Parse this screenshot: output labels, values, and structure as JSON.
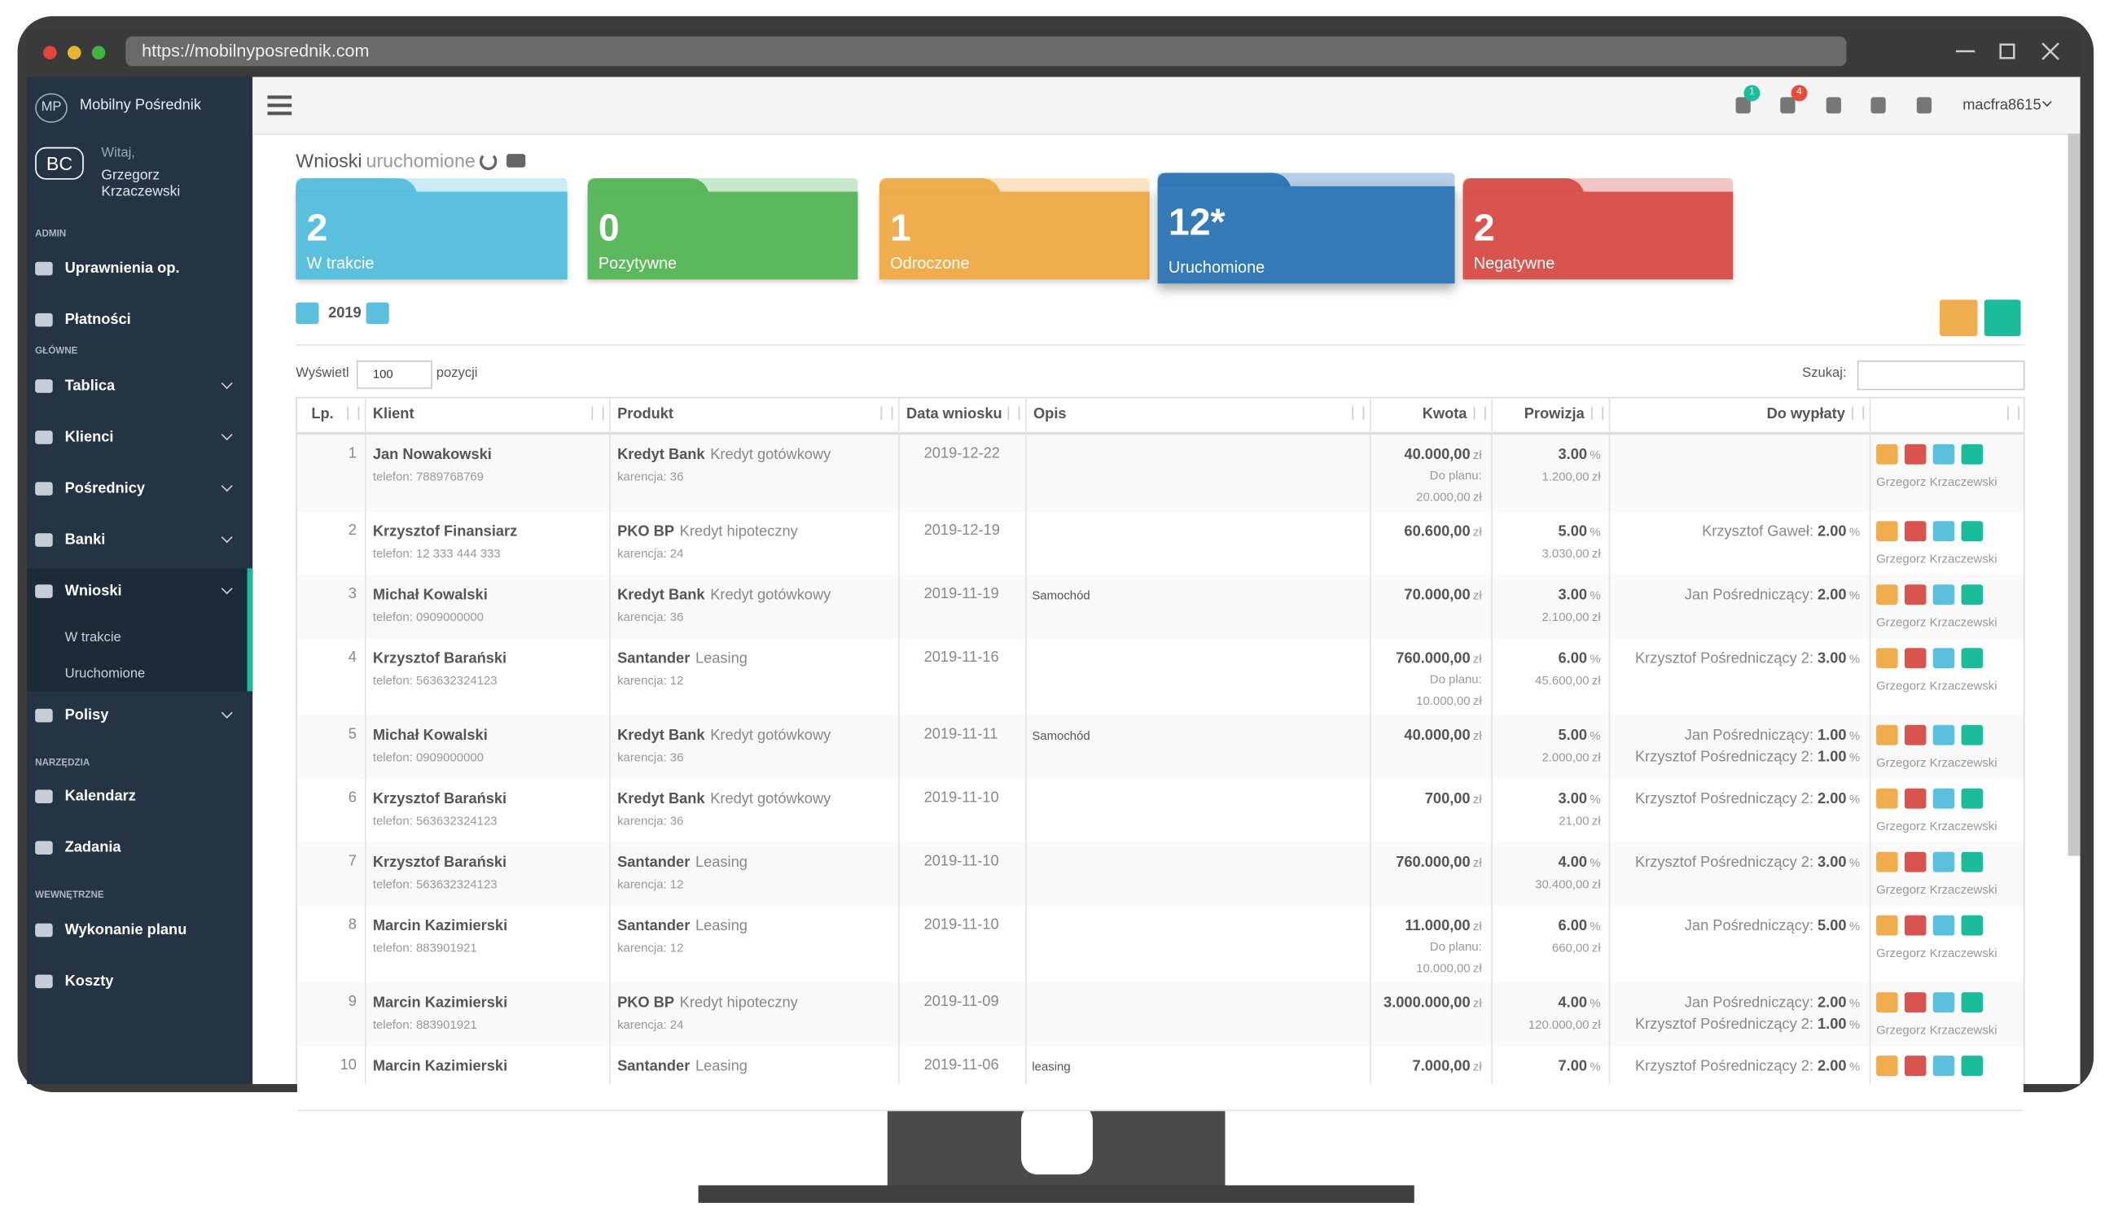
{
  "browser": {
    "url": "https://mobilnyposrednik.com"
  },
  "sidebar": {
    "logo": "MP",
    "brand": "Mobilny Pośrednik",
    "avatar": "BC",
    "greeting": "Witaj,",
    "user": "Grzegorz Krzaczewski",
    "sections": [
      {
        "label": "ADMIN",
        "items": [
          {
            "label": "Uprawnienia op."
          },
          {
            "label": "Płatności"
          }
        ]
      },
      {
        "label": "GŁÓWNE",
        "items": [
          {
            "label": "Tablica"
          },
          {
            "label": "Klienci"
          },
          {
            "label": "Pośrednicy"
          },
          {
            "label": "Banki"
          },
          {
            "label": "Wnioski",
            "children": [
              "W trakcie",
              "Uruchomione"
            ]
          },
          {
            "label": "Polisy"
          }
        ]
      },
      {
        "label": "NARZĘDZIA",
        "items": [
          {
            "label": "Kalendarz"
          },
          {
            "label": "Zadania"
          }
        ]
      },
      {
        "label": "WEWNĘTRZNE",
        "items": [
          {
            "label": "Wykonanie planu"
          },
          {
            "label": "Koszty"
          }
        ]
      }
    ]
  },
  "topbar": {
    "badges": [
      "1",
      "4"
    ],
    "username": "macfra8615"
  },
  "page": {
    "title": "Wnioski",
    "subtitle": "uruchomione",
    "cards": [
      {
        "count": "2",
        "label": "W trakcie"
      },
      {
        "count": "0",
        "label": "Pozytywne"
      },
      {
        "count": "1",
        "label": "Odroczone"
      },
      {
        "count": "12*",
        "label": "Uruchomione"
      },
      {
        "count": "2",
        "label": "Negatywne"
      }
    ],
    "year": "2019",
    "show_label": "Wyświetl",
    "page_size": "100",
    "show_suffix": "pozycji",
    "search_label": "Szukaj:"
  },
  "table": {
    "columns": [
      "Lp.",
      "Klient",
      "Produkt",
      "Data wniosku",
      "Opis",
      "Kwota",
      "Prowizja",
      "Do wypłaty"
    ],
    "currency": "zł",
    "percent": "%",
    "plan_label": "Do planu:",
    "rows": [
      {
        "lp": 1,
        "client": "Jan Nowakowski",
        "phone": "telefon: 7889768769",
        "bank": "Kredyt Bank",
        "product": "Kredyt gotówkowy",
        "grace": "karencja: 36",
        "date": "2019-12-22",
        "amount": "40.000,00",
        "plan": "20.000,00",
        "rate": "3.00",
        "commission": "1.200,00",
        "payouts": [],
        "user": "Grzegorz Krzaczewski"
      },
      {
        "lp": 2,
        "client": "Krzysztof Finansiarz",
        "phone": "telefon: 12 333 444 333",
        "bank": "PKO BP",
        "product": "Kredyt hipoteczny",
        "grace": "karencja: 24",
        "date": "2019-12-19",
        "amount": "60.600,00",
        "rate": "5.00",
        "commission": "3.030,00",
        "payouts": [
          {
            "name": "Krzysztof Gaweł:",
            "rate": "2.00"
          }
        ],
        "user": "Grzegorz Krzaczewski"
      },
      {
        "lp": 3,
        "client": "Michał Kowalski",
        "phone": "telefon: 0909000000",
        "bank": "Kredyt Bank",
        "product": "Kredyt gotówkowy",
        "grace": "karencja: 36",
        "date": "2019-11-19",
        "note": "Samochód",
        "amount": "70.000,00",
        "rate": "3.00",
        "commission": "2.100,00",
        "payouts": [
          {
            "name": "Jan Pośredniczący:",
            "rate": "2.00"
          }
        ],
        "user": "Grzegorz Krzaczewski"
      },
      {
        "lp": 4,
        "client": "Krzysztof Barański",
        "phone": "telefon: 563632324123",
        "bank": "Santander",
        "product": "Leasing",
        "grace": "karencja: 12",
        "date": "2019-11-16",
        "amount": "760.000,00",
        "plan": "10.000,00",
        "rate": "6.00",
        "commission": "45.600,00",
        "payouts": [
          {
            "name": "Krzysztof Pośredniczący 2:",
            "rate": "3.00"
          }
        ],
        "user": "Grzegorz Krzaczewski"
      },
      {
        "lp": 5,
        "client": "Michał Kowalski",
        "phone": "telefon: 0909000000",
        "bank": "Kredyt Bank",
        "product": "Kredyt gotówkowy",
        "grace": "karencja: 36",
        "date": "2019-11-11",
        "note": "Samochód",
        "amount": "40.000,00",
        "rate": "5.00",
        "commission": "2.000,00",
        "payouts": [
          {
            "name": "Jan Pośredniczący:",
            "rate": "1.00"
          },
          {
            "name": "Krzysztof Pośredniczący 2:",
            "rate": "1.00"
          }
        ],
        "user": "Grzegorz Krzaczewski"
      },
      {
        "lp": 6,
        "client": "Krzysztof Barański",
        "phone": "telefon: 563632324123",
        "bank": "Kredyt Bank",
        "product": "Kredyt gotówkowy",
        "grace": "karencja: 36",
        "date": "2019-11-10",
        "amount": "700,00",
        "rate": "3.00",
        "commission": "21,00",
        "payouts": [
          {
            "name": "Krzysztof Pośredniczący 2:",
            "rate": "2.00"
          }
        ],
        "user": "Grzegorz Krzaczewski"
      },
      {
        "lp": 7,
        "client": "Krzysztof Barański",
        "phone": "telefon: 563632324123",
        "bank": "Santander",
        "product": "Leasing",
        "grace": "karencja: 12",
        "date": "2019-11-10",
        "amount": "760.000,00",
        "rate": "4.00",
        "commission": "30.400,00",
        "payouts": [
          {
            "name": "Krzysztof Pośredniczący 2:",
            "rate": "3.00"
          }
        ],
        "user": "Grzegorz Krzaczewski"
      },
      {
        "lp": 8,
        "client": "Marcin Kazimierski",
        "phone": "telefon: 883901921",
        "bank": "Santander",
        "product": "Leasing",
        "grace": "karencja: 12",
        "date": "2019-11-10",
        "amount": "11.000,00",
        "plan": "10.000,00",
        "rate": "6.00",
        "commission": "660,00",
        "payouts": [
          {
            "name": "Jan Pośredniczący:",
            "rate": "5.00"
          }
        ],
        "user": "Grzegorz Krzaczewski"
      },
      {
        "lp": 9,
        "client": "Marcin Kazimierski",
        "phone": "telefon: 883901921",
        "bank": "PKO BP",
        "product": "Kredyt hipoteczny",
        "grace": "karencja: 24",
        "date": "2019-11-09",
        "amount": "3.000.000,00",
        "rate": "4.00",
        "commission": "120.000,00",
        "payouts": [
          {
            "name": "Jan Pośredniczący:",
            "rate": "2.00"
          },
          {
            "name": "Krzysztof Pośredniczący 2:",
            "rate": "1.00"
          }
        ],
        "user": "Grzegorz Krzaczewski"
      },
      {
        "lp": 10,
        "client": "Marcin Kazimierski",
        "bank": "Santander",
        "product": "Leasing",
        "date": "2019-11-06",
        "note": "leasing",
        "amount": "7.000,00",
        "rate": "7.00",
        "payouts": [
          {
            "name": "Krzysztof Pośredniczący 2:",
            "rate": "2.00"
          }
        ]
      }
    ]
  }
}
